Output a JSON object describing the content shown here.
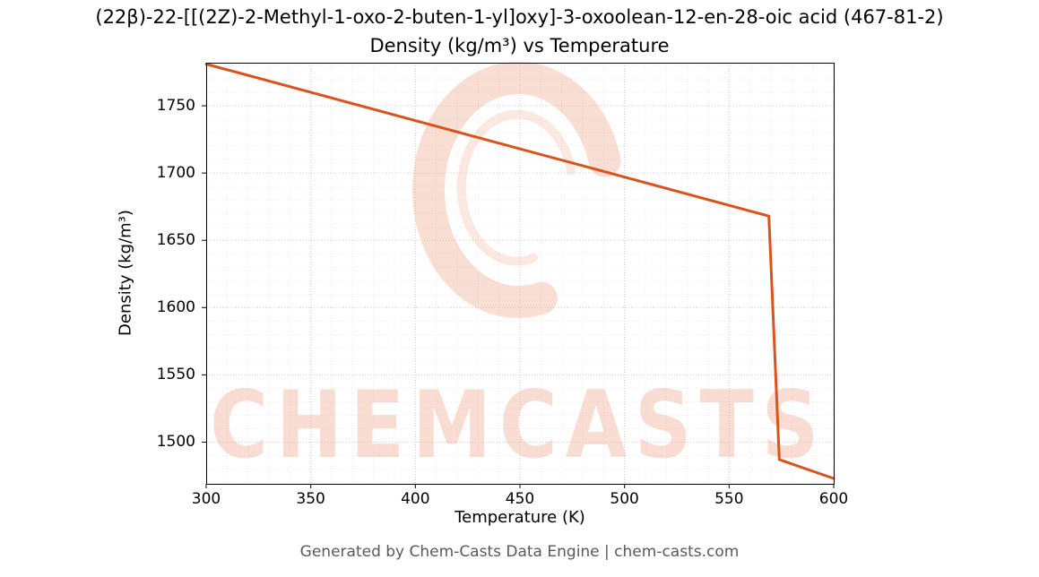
{
  "title_line1": "(22β)-22-[[(2Z)-2-Methyl-1-oxo-2-buten-1-yl]oxy]-3-oxoolean-12-en-28-oic acid (467-81-2)",
  "title_line2": "Density (kg/m³) vs Temperature",
  "footer": "Generated by Chem-Casts Data Engine | chem-casts.com",
  "watermark": {
    "text": "CHEMCASTS",
    "logo": "c-swirl-logo",
    "color": "#f0a78e",
    "opacity": 0.38
  },
  "chart_data": {
    "type": "line",
    "title": "Density (kg/m³) vs Temperature",
    "xlabel": "Temperature (K)",
    "ylabel": "Density (kg/m³)",
    "xlim": [
      300,
      600
    ],
    "ylim": [
      1469,
      1782
    ],
    "x_ticks": [
      300,
      350,
      400,
      450,
      500,
      550,
      600
    ],
    "y_ticks": [
      1500,
      1550,
      1600,
      1650,
      1700,
      1750
    ],
    "grid": true,
    "line_color": "#d9541c",
    "line_width": 3,
    "series": [
      {
        "name": "Density",
        "x": [
          300,
          569,
          574,
          600
        ],
        "y": [
          1781,
          1668,
          1487,
          1473
        ]
      }
    ]
  }
}
